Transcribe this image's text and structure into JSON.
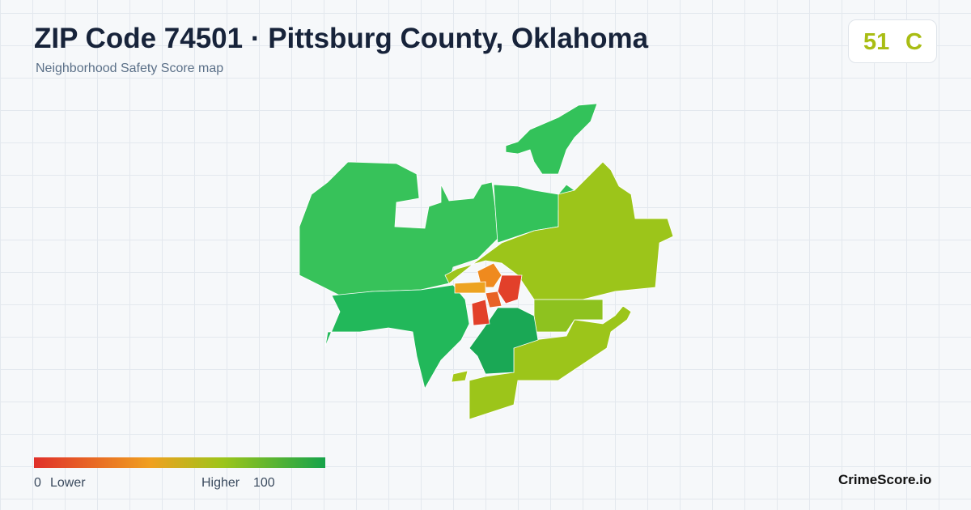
{
  "header": {
    "title": "ZIP Code 74501 · Pittsburg County, Oklahoma",
    "subtitle": "Neighborhood Safety Score map"
  },
  "score": {
    "value": "51",
    "grade": "C"
  },
  "legend": {
    "min": "0",
    "min_label": "Lower",
    "max_label": "Higher",
    "max": "100"
  },
  "brand": "CrimeScore.io"
}
